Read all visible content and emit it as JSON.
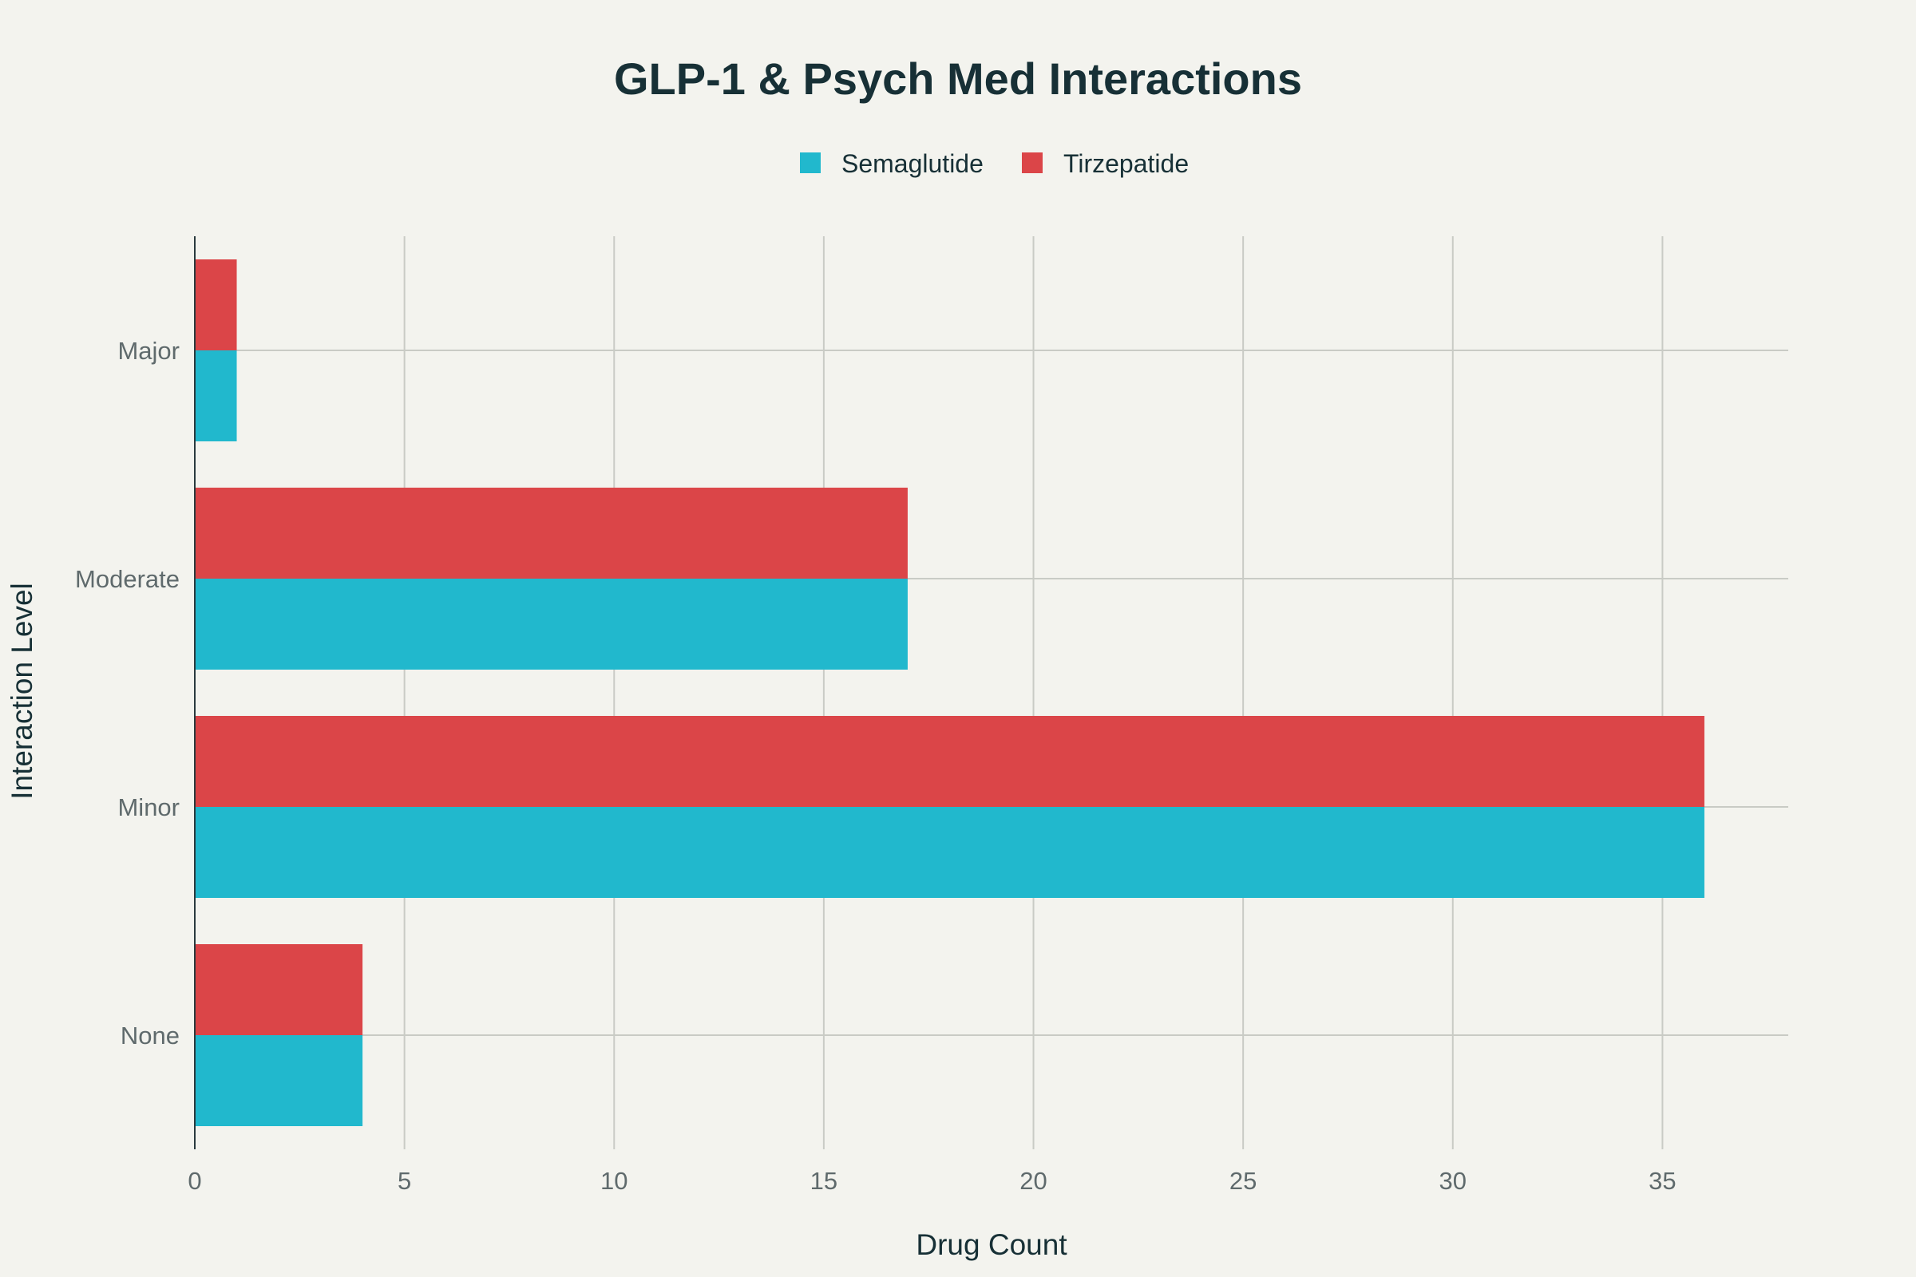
{
  "chart_data": {
    "type": "bar",
    "orientation": "horizontal",
    "title": "GLP-1 & Psych Med Interactions",
    "xlabel": "Drug Count",
    "ylabel": "Interaction Level",
    "categories": [
      "Major",
      "Moderate",
      "Minor",
      "None"
    ],
    "series": [
      {
        "name": "Semaglutide",
        "values": [
          1,
          17,
          36,
          4
        ],
        "color": "#21b8cd"
      },
      {
        "name": "Tirzepatide",
        "values": [
          1,
          17,
          36,
          4
        ],
        "color": "#db4548"
      }
    ],
    "xlim": [
      0,
      38
    ],
    "xticks": [
      0,
      5,
      10,
      15,
      20,
      25,
      30,
      35
    ],
    "grid": true,
    "legend": "top-center"
  }
}
